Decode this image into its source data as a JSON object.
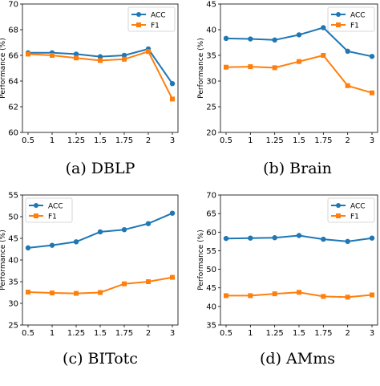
{
  "colors": {
    "acc": "#1f77b4",
    "f1": "#ff7f0e"
  },
  "chart_data": [
    {
      "type": "line",
      "caption": "(a) DBLP",
      "ylabel": "Performance (%)",
      "categories": [
        "0.5",
        "1",
        "1.25",
        "1.5",
        "1.75",
        "2",
        "3"
      ],
      "yticks": [
        "60",
        "62",
        "64",
        "66",
        "68",
        "70"
      ],
      "ylim": [
        60,
        70
      ],
      "legend": "top-right",
      "series": [
        {
          "name": "ACC",
          "marker": "circle",
          "values": [
            66.2,
            66.2,
            66.1,
            65.9,
            66.0,
            66.5,
            63.8
          ]
        },
        {
          "name": "F1",
          "marker": "square",
          "values": [
            66.1,
            66.0,
            65.8,
            65.6,
            65.7,
            66.3,
            62.6
          ]
        }
      ]
    },
    {
      "type": "line",
      "caption": "(b) Brain",
      "ylabel": "Performance (%)",
      "categories": [
        "0.5",
        "1",
        "1.25",
        "1.5",
        "1.75",
        "2",
        "3"
      ],
      "yticks": [
        "20",
        "25",
        "30",
        "35",
        "40",
        "45"
      ],
      "ylim": [
        20,
        45
      ],
      "legend": "top-right",
      "series": [
        {
          "name": "ACC",
          "marker": "circle",
          "values": [
            38.3,
            38.2,
            38.0,
            39.0,
            40.4,
            35.8,
            34.8
          ]
        },
        {
          "name": "F1",
          "marker": "square",
          "values": [
            32.7,
            32.8,
            32.6,
            33.8,
            35.0,
            29.1,
            27.7
          ]
        }
      ]
    },
    {
      "type": "line",
      "caption": "(c) BITotc",
      "ylabel": "Performance (%)",
      "categories": [
        "0.5",
        "1",
        "1.25",
        "1.5",
        "1.75",
        "2",
        "3"
      ],
      "yticks": [
        "25",
        "30",
        "35",
        "40",
        "45",
        "50",
        "55"
      ],
      "ylim": [
        25,
        55
      ],
      "legend": "top-left",
      "series": [
        {
          "name": "ACC",
          "marker": "circle",
          "values": [
            42.8,
            43.4,
            44.2,
            46.5,
            47.0,
            48.4,
            50.8
          ]
        },
        {
          "name": "F1",
          "marker": "square",
          "values": [
            32.6,
            32.4,
            32.3,
            32.5,
            34.5,
            35.0,
            36.0
          ]
        }
      ]
    },
    {
      "type": "line",
      "caption": "(d) AMms",
      "ylabel": "Performance (%)",
      "categories": [
        "0.5",
        "1",
        "1.25",
        "1.5",
        "1.75",
        "2",
        "3"
      ],
      "yticks": [
        "35",
        "40",
        "45",
        "50",
        "55",
        "60",
        "65",
        "70"
      ],
      "ylim": [
        35,
        70
      ],
      "legend": "top-right",
      "series": [
        {
          "name": "ACC",
          "marker": "circle",
          "values": [
            58.3,
            58.4,
            58.5,
            59.1,
            58.1,
            57.5,
            58.4
          ]
        },
        {
          "name": "F1",
          "marker": "square",
          "values": [
            42.9,
            42.9,
            43.4,
            43.8,
            42.7,
            42.5,
            43.1
          ]
        }
      ]
    }
  ]
}
